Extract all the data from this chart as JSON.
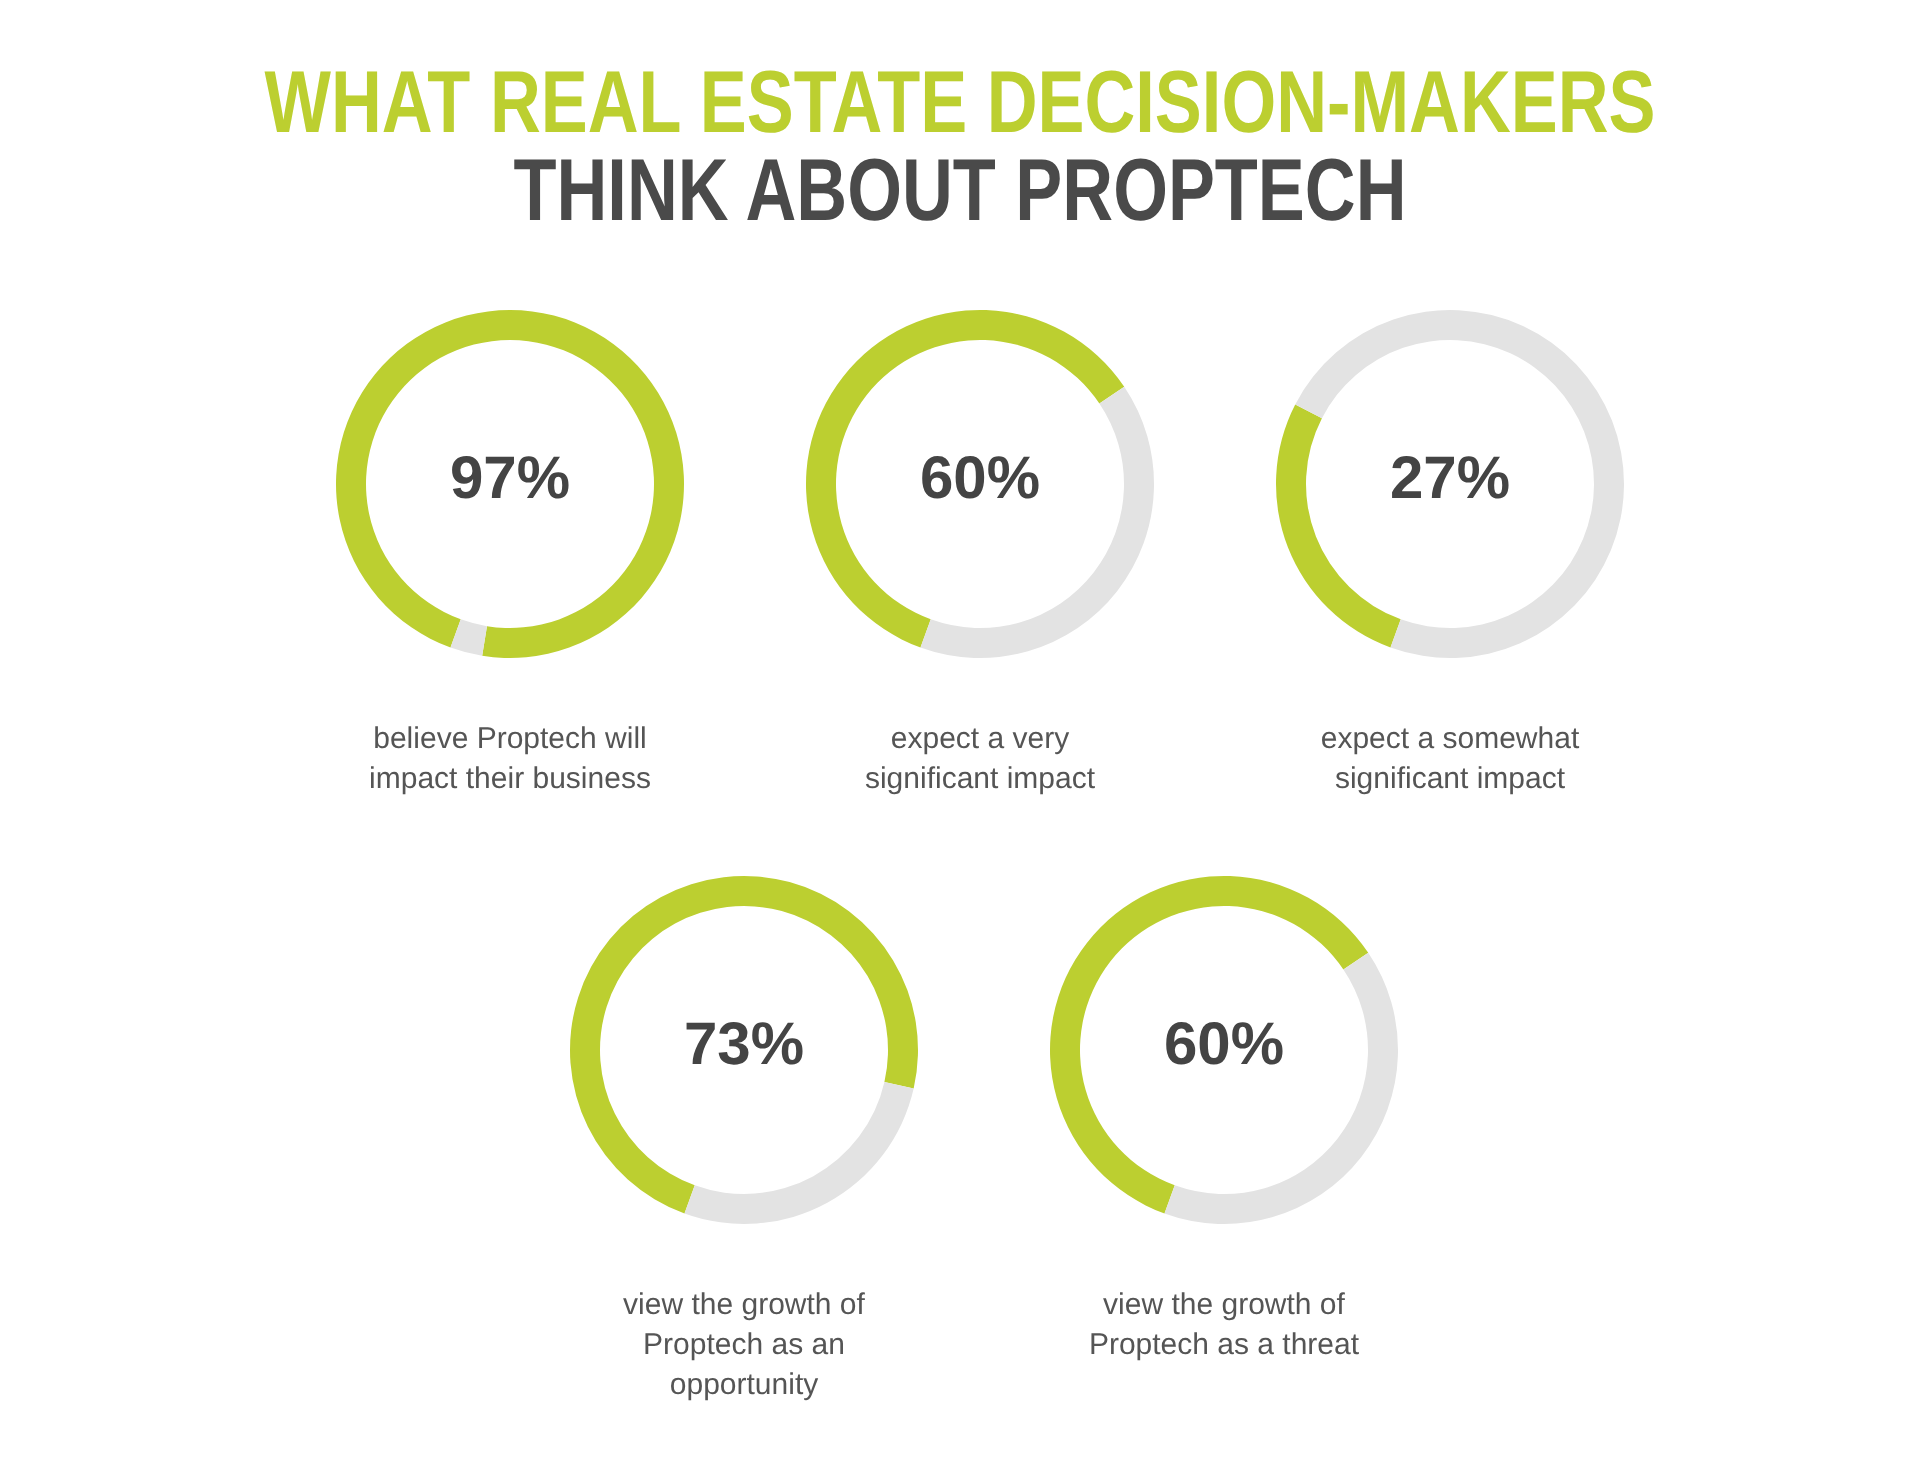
{
  "chart_data": [
    {
      "type": "donut",
      "title": "WHAT REAL ESTATE DECISION-MAKERS",
      "subtitle": "THINK ABOUT PROPTECH",
      "categories": [
        null,
        null
      ],
      "values": [
        97,
        3
      ],
      "colors": [
        "#bccf30",
        "#e3e3e3"
      ],
      "annotations": [
        "97%",
        "believe Proptech will impact their business"
      ]
    },
    {
      "type": "donut",
      "categories": [
        null,
        null
      ],
      "values": [
        60,
        40
      ],
      "colors": [
        "#bccf30",
        "#e3e3e3"
      ],
      "annotations": [
        "60%",
        "expect a very significant impact"
      ]
    },
    {
      "type": "donut",
      "categories": [
        null,
        null
      ],
      "values": [
        27,
        73
      ],
      "colors": [
        "#bccf30",
        "#e3e3e3"
      ],
      "annotations": [
        "27%",
        "expect a somewhat significant impact"
      ]
    },
    {
      "type": "donut",
      "categories": [
        null,
        null
      ],
      "values": [
        73,
        27
      ],
      "colors": [
        "#bccf30",
        "#e3e3e3"
      ],
      "annotations": [
        "73%",
        "view the growth of Proptech as an opportunity"
      ]
    },
    {
      "type": "donut",
      "categories": [
        null,
        null
      ],
      "values": [
        60,
        40
      ],
      "colors": [
        "#bccf30",
        "#e3e3e3"
      ],
      "annotations": [
        "60%",
        "view the growth of Proptech as a threat"
      ]
    }
  ]
}
